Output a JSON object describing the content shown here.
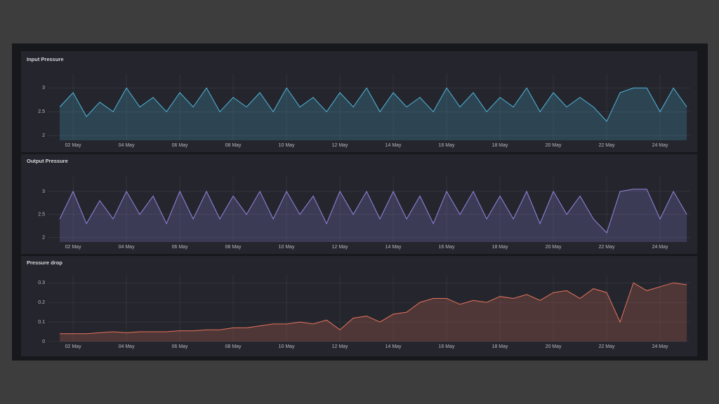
{
  "chart_data": [
    {
      "type": "area",
      "title": "Input Pressure",
      "color": "#4fb6dc",
      "grid": true,
      "xlim": [
        1.05,
        25.13
      ],
      "xticks": [
        {
          "value": 2,
          "label": "02 May"
        },
        {
          "value": 4,
          "label": "04 May"
        },
        {
          "value": 6,
          "label": "06 May"
        },
        {
          "value": 8,
          "label": "08 May"
        },
        {
          "value": 10,
          "label": "10 May"
        },
        {
          "value": 12,
          "label": "12 May"
        },
        {
          "value": 14,
          "label": "14 May"
        },
        {
          "value": 16,
          "label": "16 May"
        },
        {
          "value": 18,
          "label": "18 May"
        },
        {
          "value": 20,
          "label": "20 May"
        },
        {
          "value": 22,
          "label": "22 May"
        },
        {
          "value": 24,
          "label": "24 May"
        }
      ],
      "ylim": [
        1.9,
        3.3
      ],
      "yticks": [
        2,
        2.5,
        3
      ],
      "x": [
        1.5,
        2,
        2.5,
        3,
        3.5,
        4,
        4.5,
        5,
        5.5,
        6,
        6.5,
        7,
        7.5,
        8,
        8.5,
        9,
        9.5,
        10,
        10.5,
        11,
        11.5,
        12,
        12.5,
        13,
        13.5,
        14,
        14.5,
        15,
        15.5,
        16,
        16.5,
        17,
        17.5,
        18,
        18.5,
        19,
        19.5,
        20,
        20.5,
        21,
        21.5,
        22,
        22.5,
        23,
        23.5,
        24,
        24.5,
        25
      ],
      "values": [
        2.6,
        2.9,
        2.4,
        2.7,
        2.5,
        3.0,
        2.6,
        2.8,
        2.5,
        2.9,
        2.6,
        3.0,
        2.5,
        2.8,
        2.6,
        2.9,
        2.5,
        3.0,
        2.6,
        2.8,
        2.5,
        2.9,
        2.6,
        3.0,
        2.5,
        2.9,
        2.6,
        2.8,
        2.5,
        3.0,
        2.6,
        2.9,
        2.5,
        2.8,
        2.6,
        3.0,
        2.5,
        2.9,
        2.6,
        2.8,
        2.6,
        2.3,
        2.9,
        3.0,
        3.0,
        2.5,
        3.0,
        2.6
      ]
    },
    {
      "type": "area",
      "title": "Output Pressure",
      "color": "#9188e3",
      "grid": true,
      "xlim": [
        1.05,
        25.13
      ],
      "xticks": [
        {
          "value": 2,
          "label": "02 May"
        },
        {
          "value": 4,
          "label": "04 May"
        },
        {
          "value": 6,
          "label": "06 May"
        },
        {
          "value": 8,
          "label": "08 May"
        },
        {
          "value": 10,
          "label": "10 May"
        },
        {
          "value": 12,
          "label": "12 May"
        },
        {
          "value": 14,
          "label": "14 May"
        },
        {
          "value": 16,
          "label": "16 May"
        },
        {
          "value": 18,
          "label": "18 May"
        },
        {
          "value": 20,
          "label": "20 May"
        },
        {
          "value": 22,
          "label": "22 May"
        },
        {
          "value": 24,
          "label": "24 May"
        }
      ],
      "ylim": [
        1.9,
        3.35
      ],
      "yticks": [
        2,
        2.5,
        3
      ],
      "x": [
        1.5,
        2,
        2.5,
        3,
        3.5,
        4,
        4.5,
        5,
        5.5,
        6,
        6.5,
        7,
        7.5,
        8,
        8.5,
        9,
        9.5,
        10,
        10.5,
        11,
        11.5,
        12,
        12.5,
        13,
        13.5,
        14,
        14.5,
        15,
        15.5,
        16,
        16.5,
        17,
        17.5,
        18,
        18.5,
        19,
        19.5,
        20,
        20.5,
        21,
        21.5,
        22,
        22.5,
        23,
        23.5,
        24,
        24.5,
        25
      ],
      "values": [
        2.4,
        3.0,
        2.3,
        2.8,
        2.4,
        3.0,
        2.5,
        2.9,
        2.3,
        3.0,
        2.4,
        3.0,
        2.4,
        2.9,
        2.5,
        3.0,
        2.4,
        3.0,
        2.5,
        2.9,
        2.3,
        3.0,
        2.5,
        3.0,
        2.4,
        3.0,
        2.4,
        2.9,
        2.3,
        3.0,
        2.5,
        3.0,
        2.4,
        2.9,
        2.4,
        3.0,
        2.3,
        3.0,
        2.5,
        2.9,
        2.4,
        2.1,
        3.0,
        3.05,
        3.05,
        2.4,
        3.0,
        2.5
      ]
    },
    {
      "type": "area",
      "title": "Pressure drop",
      "color": "#e6745b",
      "grid": true,
      "xlim": [
        1.05,
        25.13
      ],
      "xticks": [
        {
          "value": 2,
          "label": "02 May"
        },
        {
          "value": 4,
          "label": "04 May"
        },
        {
          "value": 6,
          "label": "06 May"
        },
        {
          "value": 8,
          "label": "08 May"
        },
        {
          "value": 10,
          "label": "10 May"
        },
        {
          "value": 12,
          "label": "12 May"
        },
        {
          "value": 14,
          "label": "14 May"
        },
        {
          "value": 16,
          "label": "16 May"
        },
        {
          "value": 18,
          "label": "18 May"
        },
        {
          "value": 20,
          "label": "20 May"
        },
        {
          "value": 22,
          "label": "22 May"
        },
        {
          "value": 24,
          "label": "24 May"
        }
      ],
      "ylim": [
        0,
        0.34
      ],
      "yticks": [
        0,
        0.1,
        0.2,
        0.3
      ],
      "x": [
        1.5,
        2,
        2.5,
        3,
        3.5,
        4,
        4.5,
        5,
        5.5,
        6,
        6.5,
        7,
        7.5,
        8,
        8.5,
        9,
        9.5,
        10,
        10.5,
        11,
        11.5,
        12,
        12.5,
        13,
        13.5,
        14,
        14.5,
        15,
        15.5,
        16,
        16.5,
        17,
        17.5,
        18,
        18.5,
        19,
        19.5,
        20,
        20.5,
        21,
        21.5,
        22,
        22.5,
        23,
        23.5,
        24,
        24.5,
        25
      ],
      "values": [
        0.04,
        0.04,
        0.04,
        0.045,
        0.05,
        0.045,
        0.05,
        0.05,
        0.05,
        0.055,
        0.055,
        0.06,
        0.06,
        0.07,
        0.07,
        0.08,
        0.09,
        0.09,
        0.1,
        0.09,
        0.11,
        0.06,
        0.12,
        0.13,
        0.1,
        0.14,
        0.15,
        0.2,
        0.22,
        0.22,
        0.19,
        0.21,
        0.2,
        0.23,
        0.22,
        0.24,
        0.21,
        0.25,
        0.26,
        0.22,
        0.27,
        0.25,
        0.1,
        0.3,
        0.26,
        0.28,
        0.3,
        0.29
      ]
    }
  ]
}
